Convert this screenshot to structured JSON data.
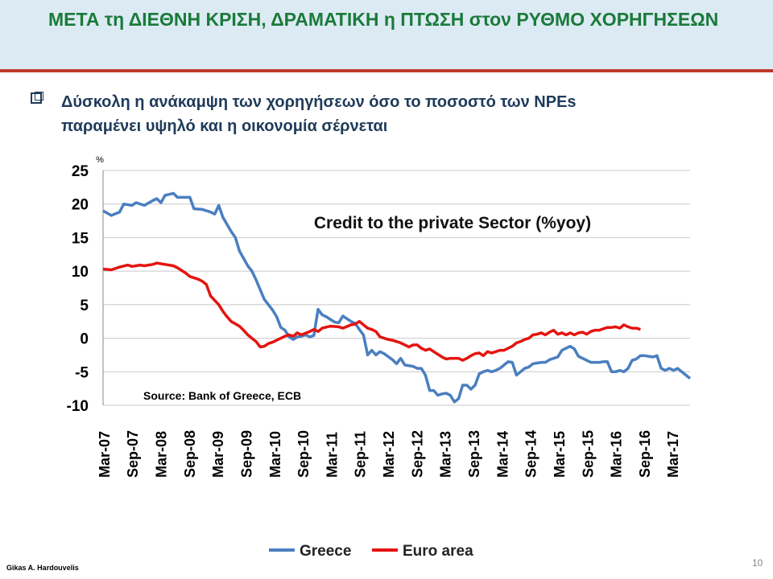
{
  "header": {
    "title": "ΜΕΤΑ τη ΔΙΕΘΝΗ ΚΡΙΣΗ, ΔΡΑΜΑΤΙΚΗ  η ΠΤΩΣΗ στον ΡΥΘΜΟ ΧΟΡΗΓΗΣΕΩΝ"
  },
  "bullet": {
    "line1": "Δύσκολη η ανάκαμψη των χορηγήσεων όσο το  ποσοστό  των NPEs",
    "line2": "παραμένει υψηλό και η οικονομία σέρνεται"
  },
  "footer": {
    "author": "Gikas A. Hardouvelis",
    "page": "10"
  },
  "colors": {
    "greece": "#4a7fc0",
    "euro_area": "#e4140f",
    "title_green": "#1a7a3a"
  },
  "chart_data": {
    "type": "line",
    "title": "Credit to the private Sector (%yoy)",
    "source_note": "Source: Bank of Greece, ECB",
    "ylabel": "%",
    "ylim": [
      -10,
      25
    ],
    "yticks": [
      25,
      20,
      15,
      10,
      5,
      0,
      -5,
      -10
    ],
    "grid": true,
    "legend_position": "bottom",
    "x_tick_labels": [
      "Mar-07",
      "Sep-07",
      "Mar-08",
      "Sep-08",
      "Mar-09",
      "Sep-09",
      "Mar-10",
      "Sep-10",
      "Mar-11",
      "Sep-11",
      "Mar-12",
      "Sep-12",
      "Mar-13",
      "Sep-13",
      "Mar-14",
      "Sep-14",
      "Mar-15",
      "Sep-15",
      "Mar-16",
      "Sep-16",
      "Mar-17"
    ],
    "x_months_count": 128,
    "series": [
      {
        "name": "Greece",
        "color": "#4a7fc0",
        "points": [
          [
            0,
            19
          ],
          [
            2,
            18.3
          ],
          [
            4,
            18.8
          ],
          [
            5,
            20
          ],
          [
            7,
            19.8
          ],
          [
            8,
            20.2
          ],
          [
            10,
            19.8
          ],
          [
            12,
            20.5
          ],
          [
            13,
            20.8
          ],
          [
            14,
            20.2
          ],
          [
            15,
            21.3
          ],
          [
            17,
            21.6
          ],
          [
            18,
            21
          ],
          [
            20,
            21
          ],
          [
            21,
            21
          ],
          [
            22,
            19.3
          ],
          [
            24,
            19.2
          ],
          [
            26,
            18.8
          ],
          [
            27,
            18.5
          ],
          [
            28,
            19.8
          ],
          [
            29,
            18
          ],
          [
            31,
            15.9
          ],
          [
            32,
            15
          ],
          [
            33,
            13
          ],
          [
            35,
            10.8
          ],
          [
            36,
            10
          ],
          [
            37,
            8.7
          ],
          [
            39,
            5.8
          ],
          [
            40,
            5
          ],
          [
            41,
            4.2
          ],
          [
            42,
            3.2
          ],
          [
            43,
            1.6
          ],
          [
            44,
            1.2
          ],
          [
            45,
            0.2
          ],
          [
            46,
            -0.2
          ],
          [
            47,
            0.2
          ],
          [
            48,
            0.3
          ],
          [
            49,
            0.5
          ],
          [
            50,
            0.2
          ],
          [
            51,
            0.4
          ],
          [
            52,
            4.3
          ],
          [
            53,
            3.5
          ],
          [
            54,
            3.2
          ],
          [
            56,
            2.4
          ],
          [
            57,
            2.3
          ],
          [
            58,
            3.3
          ],
          [
            60,
            2.5
          ],
          [
            61,
            2.2
          ],
          [
            62,
            1.3
          ],
          [
            63,
            0.5
          ],
          [
            64,
            -2.5
          ],
          [
            65,
            -1.8
          ],
          [
            66,
            -2.5
          ],
          [
            67,
            -2
          ],
          [
            68,
            -2.3
          ],
          [
            70,
            -3.2
          ],
          [
            71,
            -3.8
          ],
          [
            72,
            -3
          ],
          [
            73,
            -4
          ],
          [
            75,
            -4.2
          ],
          [
            76,
            -4.5
          ],
          [
            77,
            -4.5
          ],
          [
            78,
            -5.5
          ],
          [
            79,
            -7.8
          ],
          [
            80,
            -7.8
          ],
          [
            81,
            -8.5
          ],
          [
            82,
            -8.3
          ],
          [
            83,
            -8.2
          ],
          [
            84,
            -8.5
          ],
          [
            85,
            -9.5
          ],
          [
            86,
            -9
          ],
          [
            87,
            -7
          ],
          [
            88,
            -7
          ],
          [
            89,
            -7.6
          ],
          [
            90,
            -7
          ],
          [
            91,
            -5.3
          ],
          [
            92,
            -5
          ],
          [
            93,
            -4.8
          ],
          [
            94,
            -5
          ],
          [
            95,
            -4.8
          ],
          [
            96,
            -4.5
          ],
          [
            97,
            -4
          ],
          [
            98,
            -3.5
          ],
          [
            99,
            -3.6
          ],
          [
            100,
            -5.5
          ],
          [
            101,
            -5
          ],
          [
            102,
            -4.5
          ],
          [
            103,
            -4.3
          ],
          [
            104,
            -3.8
          ],
          [
            106,
            -3.6
          ],
          [
            107,
            -3.6
          ],
          [
            108,
            -3.2
          ],
          [
            110,
            -2.8
          ],
          [
            111,
            -1.8
          ],
          [
            112,
            -1.5
          ],
          [
            113,
            -1.2
          ],
          [
            114,
            -1.6
          ],
          [
            115,
            -2.7
          ],
          [
            116,
            -3
          ],
          [
            118,
            -3.6
          ],
          [
            120,
            -3.6
          ],
          [
            121,
            -3.5
          ],
          [
            122,
            -3.5
          ],
          [
            123,
            -5
          ],
          [
            124,
            -5
          ],
          [
            125,
            -4.8
          ],
          [
            126,
            -5
          ],
          [
            127,
            -4.5
          ],
          [
            128,
            -3.3
          ],
          [
            129,
            -3.1
          ],
          [
            130,
            -2.6
          ],
          [
            131,
            -2.6
          ],
          [
            132,
            -2.7
          ],
          [
            133,
            -2.8
          ],
          [
            134,
            -2.6
          ],
          [
            135,
            -4.5
          ],
          [
            136,
            -4.8
          ],
          [
            137,
            -4.5
          ],
          [
            138,
            -4.8
          ],
          [
            139,
            -4.5
          ],
          [
            140,
            -5
          ],
          [
            141,
            -5.5
          ],
          [
            142,
            -6
          ]
        ]
      },
      {
        "name": "Euro area",
        "color": "#e4140f",
        "points": [
          [
            0,
            10.3
          ],
          [
            2,
            10.2
          ],
          [
            4,
            10.6
          ],
          [
            6,
            10.9
          ],
          [
            7,
            10.7
          ],
          [
            9,
            10.9
          ],
          [
            10,
            10.8
          ],
          [
            12,
            11
          ],
          [
            13,
            11.2
          ],
          [
            15,
            11
          ],
          [
            17,
            10.8
          ],
          [
            18,
            10.5
          ],
          [
            20,
            9.7
          ],
          [
            21,
            9.2
          ],
          [
            23,
            8.8
          ],
          [
            24,
            8.5
          ],
          [
            25,
            8
          ],
          [
            26,
            6.3
          ],
          [
            28,
            5
          ],
          [
            29,
            4
          ],
          [
            30,
            3.2
          ],
          [
            31,
            2.5
          ],
          [
            33,
            1.8
          ],
          [
            34,
            1.2
          ],
          [
            35,
            0.5
          ],
          [
            36,
            0
          ],
          [
            37,
            -0.5
          ],
          [
            38,
            -1.3
          ],
          [
            39,
            -1.2
          ],
          [
            40,
            -0.8
          ],
          [
            41,
            -0.6
          ],
          [
            42,
            -0.3
          ],
          [
            43,
            0
          ],
          [
            44,
            0.3
          ],
          [
            45,
            0.5
          ],
          [
            46,
            0.3
          ],
          [
            47,
            0.8
          ],
          [
            48,
            0.5
          ],
          [
            50,
            1
          ],
          [
            51,
            1.3
          ],
          [
            52,
            1
          ],
          [
            53,
            1.5
          ],
          [
            55,
            1.8
          ],
          [
            57,
            1.7
          ],
          [
            58,
            1.5
          ],
          [
            60,
            2
          ],
          [
            61,
            2.1
          ],
          [
            62,
            2.5
          ],
          [
            63,
            2
          ],
          [
            64,
            1.5
          ],
          [
            65,
            1.3
          ],
          [
            66,
            1
          ],
          [
            67,
            0.2
          ],
          [
            68,
            0
          ],
          [
            69,
            -0.2
          ],
          [
            70,
            -0.3
          ],
          [
            71,
            -0.5
          ],
          [
            72,
            -0.7
          ],
          [
            73,
            -1
          ],
          [
            74,
            -1.3
          ],
          [
            75,
            -1
          ],
          [
            76,
            -1
          ],
          [
            77,
            -1.5
          ],
          [
            78,
            -1.8
          ],
          [
            79,
            -1.6
          ],
          [
            80,
            -2
          ],
          [
            81,
            -2.4
          ],
          [
            82,
            -2.8
          ],
          [
            83,
            -3.1
          ],
          [
            84,
            -3
          ],
          [
            86,
            -3
          ],
          [
            87,
            -3.3
          ],
          [
            88,
            -3
          ],
          [
            89,
            -2.6
          ],
          [
            90,
            -2.3
          ],
          [
            91,
            -2.2
          ],
          [
            92,
            -2.6
          ],
          [
            93,
            -2
          ],
          [
            94,
            -2.2
          ],
          [
            95,
            -2
          ],
          [
            96,
            -1.8
          ],
          [
            97,
            -1.8
          ],
          [
            98,
            -1.5
          ],
          [
            99,
            -1.2
          ],
          [
            100,
            -0.7
          ],
          [
            101,
            -0.5
          ],
          [
            102,
            -0.2
          ],
          [
            103,
            0
          ],
          [
            104,
            0.5
          ],
          [
            105,
            0.6
          ],
          [
            106,
            0.8
          ],
          [
            107,
            0.5
          ],
          [
            108,
            0.9
          ],
          [
            109,
            1.2
          ],
          [
            110,
            0.6
          ],
          [
            111,
            0.8
          ],
          [
            112,
            0.5
          ],
          [
            113,
            0.8
          ],
          [
            114,
            0.5
          ],
          [
            115,
            0.8
          ],
          [
            116,
            0.9
          ],
          [
            117,
            0.6
          ],
          [
            118,
            1
          ],
          [
            119,
            1.2
          ],
          [
            120,
            1.2
          ],
          [
            121,
            1.4
          ],
          [
            122,
            1.6
          ],
          [
            123,
            1.6
          ],
          [
            124,
            1.7
          ],
          [
            125,
            1.5
          ],
          [
            126,
            2
          ],
          [
            127,
            1.7
          ],
          [
            128,
            1.5
          ],
          [
            129,
            1.5
          ],
          [
            130,
            1.3
          ]
        ]
      }
    ]
  }
}
